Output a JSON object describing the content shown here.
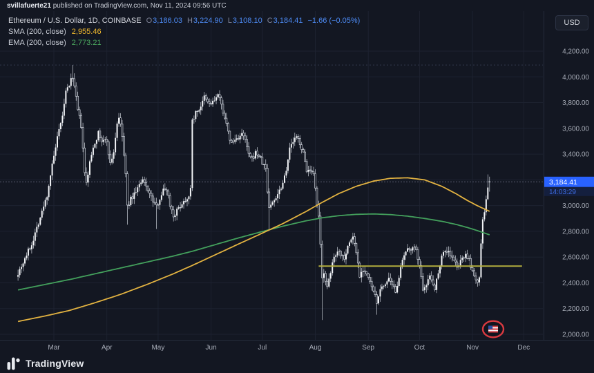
{
  "header": {
    "username": "svillafuerte21",
    "publish_text": " published on TradingView.com, Nov 11, 2024 09:56 UTC"
  },
  "legend": {
    "title": "Ethereum / U.S. Dollar, 1D, COINBASE",
    "open_label": "O",
    "open": "3,186.03",
    "high_label": "H",
    "high": "3,224.90",
    "low_label": "L",
    "low": "3,108.10",
    "close_label": "C",
    "close": "3,184.41",
    "change": "−1.66 (−0.05%)",
    "sma_label": "SMA (200, close)",
    "sma_value": "2,955.46",
    "ema_label": "EMA (200, close)",
    "ema_value": "2,773.21"
  },
  "controls": {
    "currency": "USD"
  },
  "footer": {
    "brand": "TradingView"
  },
  "colors": {
    "background": "#131722",
    "grid": "#1d2230",
    "axis_text": "#a8adb8",
    "candle_up": "#f2f4f7",
    "candle_down": "#0d111c",
    "wick": "#ccd1da",
    "sma": "#e3b341",
    "ema": "#43a05c",
    "badge": "#2962ff",
    "countdown_bg": "#141f3e",
    "countdown_text": "#3d6be0",
    "ray": "#b3ae3e",
    "ohlc_value": "#4d8bf5"
  },
  "chart_data": {
    "type": "candlestick",
    "title": "Ethereum / U.S. Dollar, 1D, COINBASE",
    "symbol": "ETH/USD",
    "interval": "1D",
    "exchange": "COINBASE",
    "ohlc_current": {
      "open": 3186.03,
      "high": 3224.9,
      "low": 3108.1,
      "close": 3184.41,
      "change": -1.66,
      "change_pct": -0.05
    },
    "indicators": [
      {
        "name": "SMA",
        "params": "200, close",
        "value": 2955.46
      },
      {
        "name": "EMA",
        "params": "200, close",
        "value": 2773.21
      }
    ],
    "ylim": [
      2000,
      4200
    ],
    "price_gridlines": [
      {
        "value": 4200,
        "label": "4,200.00"
      },
      {
        "value": 4000,
        "label": "4,000.00"
      },
      {
        "value": 3800,
        "label": "3,800.00"
      },
      {
        "value": 3600,
        "label": "3,600.00"
      },
      {
        "value": 3400,
        "label": "3,400.00"
      },
      {
        "value": 3200,
        "label": "3,200.00"
      },
      {
        "value": 3000,
        "label": "3,000.00"
      },
      {
        "value": 2800,
        "label": "2,800.00"
      },
      {
        "value": 2600,
        "label": "2,600.00"
      },
      {
        "value": 2400,
        "label": "2,400.00"
      },
      {
        "value": 2200,
        "label": "2,200.00"
      },
      {
        "value": 2000,
        "label": "2,000.00"
      }
    ],
    "x_axis": {
      "months": [
        {
          "label": "Mar",
          "day": 21
        },
        {
          "label": "Apr",
          "day": 52
        },
        {
          "label": "May",
          "day": 82
        },
        {
          "label": "Jun",
          "day": 113
        },
        {
          "label": "Jul",
          "day": 143
        },
        {
          "label": "Aug",
          "day": 174
        },
        {
          "label": "Sep",
          "day": 205
        },
        {
          "label": "Oct",
          "day": 235
        },
        {
          "label": "Nov",
          "day": 266
        },
        {
          "label": "Dec",
          "day": 296
        }
      ]
    },
    "days": 277,
    "close_anchors": [
      [
        0,
        2480
      ],
      [
        3,
        2560
      ],
      [
        5,
        2620
      ],
      [
        8,
        2700
      ],
      [
        11,
        2830
      ],
      [
        14,
        2950
      ],
      [
        17,
        3080
      ],
      [
        19,
        3240
      ],
      [
        21,
        3380
      ],
      [
        23,
        3520
      ],
      [
        25,
        3630
      ],
      [
        27,
        3780
      ],
      [
        28,
        3880
      ],
      [
        30,
        3940
      ],
      [
        32,
        4005
      ],
      [
        33,
        3920
      ],
      [
        35,
        3740
      ],
      [
        37,
        3620
      ],
      [
        39,
        3250
      ],
      [
        40,
        3170
      ],
      [
        42,
        3330
      ],
      [
        44,
        3460
      ],
      [
        47,
        3560
      ],
      [
        49,
        3500
      ],
      [
        52,
        3505
      ],
      [
        54,
        3320
      ],
      [
        56,
        3420
      ],
      [
        58,
        3640
      ],
      [
        59,
        3690
      ],
      [
        61,
        3540
      ],
      [
        63,
        3240
      ],
      [
        64,
        2990
      ],
      [
        66,
        3050
      ],
      [
        68,
        3090
      ],
      [
        70,
        3140
      ],
      [
        73,
        3190
      ],
      [
        76,
        3130
      ],
      [
        78,
        3060
      ],
      [
        81,
        2990
      ],
      [
        83,
        3060
      ],
      [
        85,
        3120
      ],
      [
        87,
        3130
      ],
      [
        89,
        3010
      ],
      [
        91,
        2920
      ],
      [
        93,
        2960
      ],
      [
        96,
        3020
      ],
      [
        99,
        3060
      ],
      [
        101,
        3120
      ],
      [
        102,
        3660
      ],
      [
        104,
        3720
      ],
      [
        106,
        3750
      ],
      [
        108,
        3800
      ],
      [
        109,
        3840
      ],
      [
        111,
        3800
      ],
      [
        113,
        3790
      ],
      [
        115,
        3820
      ],
      [
        117,
        3860
      ],
      [
        119,
        3780
      ],
      [
        121,
        3690
      ],
      [
        123,
        3560
      ],
      [
        125,
        3480
      ],
      [
        127,
        3510
      ],
      [
        129,
        3530
      ],
      [
        131,
        3550
      ],
      [
        133,
        3510
      ],
      [
        135,
        3390
      ],
      [
        137,
        3360
      ],
      [
        139,
        3410
      ],
      [
        141,
        3390
      ],
      [
        143,
        3330
      ],
      [
        145,
        3290
      ],
      [
        146,
        3110
      ],
      [
        147,
        2990
      ],
      [
        149,
        3020
      ],
      [
        151,
        3070
      ],
      [
        153,
        3120
      ],
      [
        155,
        3180
      ],
      [
        157,
        3290
      ],
      [
        159,
        3440
      ],
      [
        161,
        3500
      ],
      [
        163,
        3530
      ],
      [
        165,
        3490
      ],
      [
        167,
        3400
      ],
      [
        169,
        3280
      ],
      [
        171,
        3260
      ],
      [
        173,
        3230
      ],
      [
        175,
        3010
      ],
      [
        176,
        2900
      ],
      [
        177,
        2690
      ],
      [
        178,
        2430
      ],
      [
        179,
        2490
      ],
      [
        181,
        2360
      ],
      [
        183,
        2470
      ],
      [
        184,
        2560
      ],
      [
        186,
        2630
      ],
      [
        187,
        2660
      ],
      [
        189,
        2620
      ],
      [
        191,
        2600
      ],
      [
        193,
        2680
      ],
      [
        195,
        2740
      ],
      [
        196,
        2760
      ],
      [
        198,
        2640
      ],
      [
        200,
        2460
      ],
      [
        202,
        2510
      ],
      [
        204,
        2470
      ],
      [
        205,
        2430
      ],
      [
        207,
        2370
      ],
      [
        209,
        2290
      ],
      [
        210,
        2240
      ],
      [
        211,
        2310
      ],
      [
        213,
        2360
      ],
      [
        215,
        2400
      ],
      [
        217,
        2420
      ],
      [
        219,
        2370
      ],
      [
        221,
        2340
      ],
      [
        223,
        2450
      ],
      [
        225,
        2560
      ],
      [
        226,
        2610
      ],
      [
        228,
        2650
      ],
      [
        230,
        2670
      ],
      [
        231,
        2690
      ],
      [
        233,
        2640
      ],
      [
        234,
        2600
      ],
      [
        236,
        2440
      ],
      [
        237,
        2360
      ],
      [
        239,
        2400
      ],
      [
        241,
        2450
      ],
      [
        243,
        2400
      ],
      [
        244,
        2360
      ],
      [
        246,
        2480
      ],
      [
        248,
        2620
      ],
      [
        250,
        2650
      ],
      [
        252,
        2640
      ],
      [
        255,
        2570
      ],
      [
        257,
        2530
      ],
      [
        259,
        2560
      ],
      [
        261,
        2610
      ],
      [
        262,
        2630
      ],
      [
        264,
        2570
      ],
      [
        265,
        2515
      ],
      [
        267,
        2460
      ],
      [
        269,
        2410
      ],
      [
        270,
        2425
      ],
      [
        271,
        2720
      ],
      [
        272,
        2880
      ],
      [
        273,
        2950
      ],
      [
        274,
        3050
      ],
      [
        275,
        3125
      ],
      [
        276,
        3184.41
      ]
    ],
    "wick_events": [
      {
        "day": 32,
        "high": 4093
      },
      {
        "day": 64,
        "low": 2852
      },
      {
        "day": 81,
        "low": 2818
      },
      {
        "day": 147,
        "low": 2812
      },
      {
        "day": 178,
        "low": 2111
      },
      {
        "day": 210,
        "low": 2152
      },
      {
        "day": 275,
        "high": 3242
      }
    ],
    "last_candle": {
      "open": 3186.03,
      "high": 3224.9,
      "low": 3108.1,
      "close": 3184.41
    },
    "sma200_anchors": [
      [
        0,
        2100
      ],
      [
        15,
        2140
      ],
      [
        30,
        2185
      ],
      [
        45,
        2245
      ],
      [
        60,
        2310
      ],
      [
        75,
        2385
      ],
      [
        90,
        2465
      ],
      [
        102,
        2535
      ],
      [
        115,
        2615
      ],
      [
        128,
        2695
      ],
      [
        142,
        2780
      ],
      [
        155,
        2860
      ],
      [
        168,
        2950
      ],
      [
        178,
        3025
      ],
      [
        188,
        3095
      ],
      [
        198,
        3150
      ],
      [
        208,
        3190
      ],
      [
        218,
        3212
      ],
      [
        228,
        3216
      ],
      [
        238,
        3200
      ],
      [
        248,
        3150
      ],
      [
        256,
        3095
      ],
      [
        263,
        3040
      ],
      [
        269,
        2998
      ],
      [
        276,
        2955.46
      ]
    ],
    "ema200_anchors": [
      [
        0,
        2345
      ],
      [
        15,
        2385
      ],
      [
        30,
        2425
      ],
      [
        45,
        2470
      ],
      [
        60,
        2515
      ],
      [
        75,
        2560
      ],
      [
        90,
        2605
      ],
      [
        102,
        2645
      ],
      [
        115,
        2695
      ],
      [
        128,
        2745
      ],
      [
        142,
        2795
      ],
      [
        155,
        2840
      ],
      [
        168,
        2880
      ],
      [
        178,
        2905
      ],
      [
        188,
        2922
      ],
      [
        198,
        2932
      ],
      [
        208,
        2935
      ],
      [
        218,
        2930
      ],
      [
        228,
        2918
      ],
      [
        238,
        2900
      ],
      [
        248,
        2878
      ],
      [
        256,
        2855
      ],
      [
        263,
        2830
      ],
      [
        269,
        2805
      ],
      [
        276,
        2773.21
      ]
    ],
    "drawings": {
      "horizontal_ray": {
        "price": 2530,
        "start_day": 176,
        "end_day": 295
      },
      "ath_dashed_level": 4092,
      "last_price_line": 3184.41
    },
    "last_price_label": "3,184.41",
    "countdown": "14:03:29"
  }
}
